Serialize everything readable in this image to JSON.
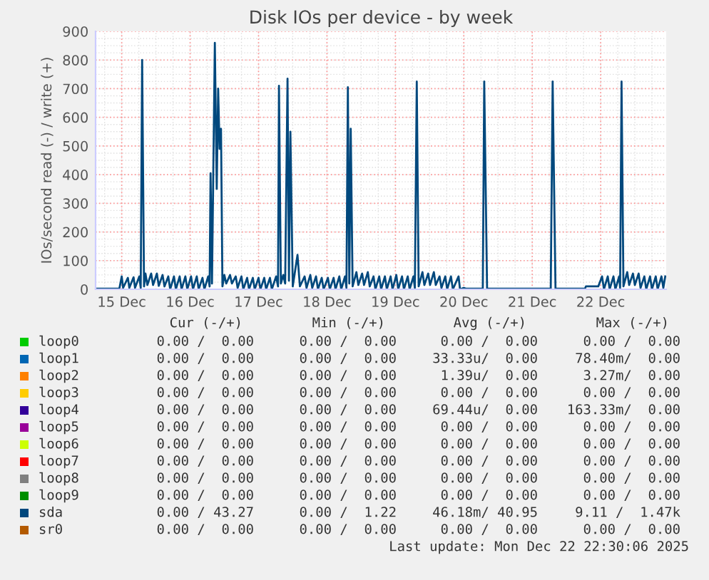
{
  "chart_data": {
    "type": "line",
    "title": "Disk IOs per device - by week",
    "ylabel": "IOs/second read (-) / write (+)",
    "xlim": [
      "2025-12-14T14:50",
      "2025-12-22T23:00"
    ],
    "xticks": [
      {
        "value": "2025-12-15",
        "label": "15 Dec"
      },
      {
        "value": "2025-12-16",
        "label": "16 Dec"
      },
      {
        "value": "2025-12-17",
        "label": "17 Dec"
      },
      {
        "value": "2025-12-18",
        "label": "18 Dec"
      },
      {
        "value": "2025-12-19",
        "label": "19 Dec"
      },
      {
        "value": "2025-12-20",
        "label": "20 Dec"
      },
      {
        "value": "2025-12-21",
        "label": "21 Dec"
      },
      {
        "value": "2025-12-22",
        "label": "22 Dec"
      }
    ],
    "ylim": [
      0,
      900
    ],
    "yticks": [
      0,
      100,
      200,
      300,
      400,
      500,
      600,
      700,
      800,
      900
    ],
    "grid": true,
    "legend": "bottom",
    "series": [
      {
        "name": "loop0",
        "color": "#00cc00"
      },
      {
        "name": "loop1",
        "color": "#0066b3"
      },
      {
        "name": "loop2",
        "color": "#ff8000"
      },
      {
        "name": "loop3",
        "color": "#ffcc00"
      },
      {
        "name": "loop4",
        "color": "#330099"
      },
      {
        "name": "loop5",
        "color": "#990099"
      },
      {
        "name": "loop6",
        "color": "#ccff00"
      },
      {
        "name": "loop7",
        "color": "#ff0000"
      },
      {
        "name": "loop8",
        "color": "#808080"
      },
      {
        "name": "loop9",
        "color": "#008f00"
      },
      {
        "name": "sda",
        "color": "#00487d",
        "x": [
          "2025-12-14T14:50",
          "2025-12-14T23:10",
          "2025-12-15T00:00",
          "2025-12-15T00:30",
          "2025-12-15T02:10",
          "2025-12-15T02:40",
          "2025-12-15T04:10",
          "2025-12-15T04:40",
          "2025-12-15T06:10",
          "2025-12-15T06:40",
          "2025-12-15T07:10",
          "2025-12-15T07:50",
          "2025-12-15T08:20",
          "2025-12-15T09:00",
          "2025-12-15T10:20",
          "2025-12-15T11:00",
          "2025-12-15T12:20",
          "2025-12-15T13:00",
          "2025-12-15T14:20",
          "2025-12-15T15:00",
          "2025-12-15T16:20",
          "2025-12-15T17:00",
          "2025-12-15T18:20",
          "2025-12-15T19:00",
          "2025-12-15T20:20",
          "2025-12-15T21:00",
          "2025-12-15T22:20",
          "2025-12-15T23:00",
          "2025-12-16T00:20",
          "2025-12-16T01:00",
          "2025-12-16T02:20",
          "2025-12-16T03:00",
          "2025-12-16T04:20",
          "2025-12-16T05:00",
          "2025-12-16T06:20",
          "2025-12-16T06:50",
          "2025-12-16T07:10",
          "2025-12-16T07:40",
          "2025-12-16T08:40",
          "2025-12-16T09:20",
          "2025-12-16T09:50",
          "2025-12-16T10:20",
          "2025-12-16T10:50",
          "2025-12-16T11:20",
          "2025-12-16T12:00",
          "2025-12-16T12:40",
          "2025-12-16T14:00",
          "2025-12-16T14:40",
          "2025-12-16T16:00",
          "2025-12-16T16:40",
          "2025-12-16T18:00",
          "2025-12-16T18:40",
          "2025-12-16T20:00",
          "2025-12-16T20:40",
          "2025-12-16T22:00",
          "2025-12-16T22:40",
          "2025-12-17T00:00",
          "2025-12-17T00:40",
          "2025-12-17T02:00",
          "2025-12-17T02:40",
          "2025-12-17T04:00",
          "2025-12-17T04:40",
          "2025-12-17T06:10",
          "2025-12-17T06:50",
          "2025-12-17T07:10",
          "2025-12-17T07:50",
          "2025-12-17T08:40",
          "2025-12-17T09:20",
          "2025-12-17T10:10",
          "2025-12-17T10:40",
          "2025-12-17T11:10",
          "2025-12-17T12:00",
          "2025-12-17T13:40",
          "2025-12-17T14:30",
          "2025-12-17T16:10",
          "2025-12-17T16:50",
          "2025-12-17T18:10",
          "2025-12-17T18:50",
          "2025-12-17T20:10",
          "2025-12-17T20:50",
          "2025-12-17T22:10",
          "2025-12-17T22:50",
          "2025-12-18T00:20",
          "2025-12-18T01:00",
          "2025-12-18T02:20",
          "2025-12-18T03:00",
          "2025-12-18T04:20",
          "2025-12-18T05:00",
          "2025-12-18T06:20",
          "2025-12-18T06:50",
          "2025-12-18T07:20",
          "2025-12-18T07:50",
          "2025-12-18T08:20",
          "2025-12-18T09:00",
          "2025-12-18T10:20",
          "2025-12-18T11:00",
          "2025-12-18T12:20",
          "2025-12-18T13:00",
          "2025-12-18T14:20",
          "2025-12-18T15:00",
          "2025-12-18T16:20",
          "2025-12-18T17:00",
          "2025-12-18T18:20",
          "2025-12-18T19:00",
          "2025-12-18T20:20",
          "2025-12-18T21:00",
          "2025-12-18T22:20",
          "2025-12-18T23:00",
          "2025-12-19T00:20",
          "2025-12-19T01:00",
          "2025-12-19T02:20",
          "2025-12-19T03:00",
          "2025-12-19T04:20",
          "2025-12-19T05:00",
          "2025-12-19T06:20",
          "2025-12-19T06:50",
          "2025-12-19T07:30",
          "2025-12-19T08:10",
          "2025-12-19T09:30",
          "2025-12-19T10:10",
          "2025-12-19T11:30",
          "2025-12-19T12:10",
          "2025-12-19T13:30",
          "2025-12-19T14:10",
          "2025-12-19T15:30",
          "2025-12-19T16:10",
          "2025-12-19T17:30",
          "2025-12-19T18:10",
          "2025-12-19T19:30",
          "2025-12-19T20:10",
          "2025-12-19T22:10",
          "2025-12-19T22:40",
          "2025-12-20T00:00",
          "2025-12-20T00:50",
          "2025-12-20T06:40",
          "2025-12-20T07:10",
          "2025-12-20T08:10",
          "2025-12-21T06:30",
          "2025-12-21T07:10",
          "2025-12-21T08:10",
          "2025-12-21T18:30",
          "2025-12-21T18:50",
          "2025-12-21T23:10",
          "2025-12-22T00:30",
          "2025-12-22T01:10",
          "2025-12-22T02:30",
          "2025-12-22T03:10",
          "2025-12-22T04:30",
          "2025-12-22T05:10",
          "2025-12-22T06:30",
          "2025-12-22T06:50",
          "2025-12-22T07:20",
          "2025-12-22T08:00",
          "2025-12-22T09:20",
          "2025-12-22T10:00",
          "2025-12-22T11:20",
          "2025-12-22T12:00",
          "2025-12-22T13:20",
          "2025-12-22T14:00",
          "2025-12-22T15:20",
          "2025-12-22T16:00",
          "2025-12-22T17:20",
          "2025-12-22T18:00",
          "2025-12-22T19:20",
          "2025-12-22T20:00",
          "2025-12-22T21:20",
          "2025-12-22T22:00",
          "2025-12-22T22:40"
        ],
        "values": [
          2,
          2,
          45,
          5,
          40,
          5,
          42,
          5,
          45,
          5,
          800,
          10,
          55,
          15,
          55,
          15,
          55,
          12,
          50,
          10,
          45,
          0,
          45,
          0,
          45,
          0,
          45,
          0,
          45,
          0,
          45,
          0,
          40,
          0,
          45,
          10,
          405,
          20,
          860,
          350,
          700,
          490,
          560,
          10,
          50,
          20,
          50,
          20,
          45,
          5,
          45,
          0,
          40,
          0,
          40,
          0,
          40,
          0,
          40,
          0,
          40,
          0,
          45,
          10,
          710,
          20,
          50,
          20,
          735,
          30,
          550,
          10,
          120,
          10,
          45,
          5,
          50,
          5,
          45,
          0,
          40,
          0,
          40,
          0,
          40,
          0,
          45,
          0,
          45,
          5,
          705,
          20,
          560,
          10,
          60,
          15,
          55,
          15,
          60,
          10,
          45,
          0,
          45,
          0,
          45,
          0,
          45,
          0,
          50,
          0,
          45,
          0,
          45,
          0,
          45,
          5,
          725,
          10,
          60,
          15,
          55,
          15,
          60,
          15,
          45,
          5,
          45,
          0,
          45,
          0,
          45,
          0,
          5,
          2,
          2,
          725,
          2,
          2,
          725,
          2,
          2,
          10,
          10,
          45,
          0,
          45,
          0,
          45,
          0,
          45,
          5,
          725,
          10,
          60,
          15,
          55,
          15,
          55,
          5,
          45,
          0,
          45,
          0,
          45,
          0,
          45,
          5,
          45
        ]
      },
      {
        "name": "sr0",
        "color": "#b35a00"
      }
    ],
    "annotations": [
      "Cur (-/+)",
      "Min (-/+)",
      "Avg (-/+)",
      "Max (-/+)",
      "0.00 /  0.00",
      "0.00 /  0.00",
      "0.00 /  0.00",
      "0.00 /  0.00",
      "0.00 /  0.00",
      "0.00 /  0.00",
      "33.33u/  0.00",
      "78.40m/  0.00",
      "0.00 /  0.00",
      "0.00 /  0.00",
      "1.39u/  0.00",
      "3.27m/  0.00",
      "0.00 /  0.00",
      "0.00 /  0.00",
      "0.00 /  0.00",
      "0.00 /  0.00",
      "0.00 /  0.00",
      "0.00 /  0.00",
      "69.44u/  0.00",
      "163.33m/  0.00",
      "0.00 /  0.00",
      "0.00 /  0.00",
      "0.00 /  0.00",
      "0.00 /  0.00",
      "0.00 /  0.00",
      "0.00 /  0.00",
      "0.00 /  0.00",
      "0.00 /  0.00",
      "0.00 /  0.00",
      "0.00 /  0.00",
      "0.00 /  0.00",
      "0.00 /  0.00",
      "0.00 /  0.00",
      "0.00 /  0.00",
      "0.00 /  0.00",
      "0.00 /  0.00",
      "0.00 /  0.00",
      "0.00 /  0.00",
      "0.00 /  0.00",
      "0.00 /  0.00",
      "0.00 / 43.27",
      "0.00 /  1.22",
      "46.18m/ 40.95",
      "9.11 /  1.47k",
      "0.00 /  0.00",
      "0.00 /  0.00",
      "0.00 /  0.00",
      "0.00 /  0.00",
      "Last update: Mon Dec 22 22:30:06 2025"
    ]
  }
}
